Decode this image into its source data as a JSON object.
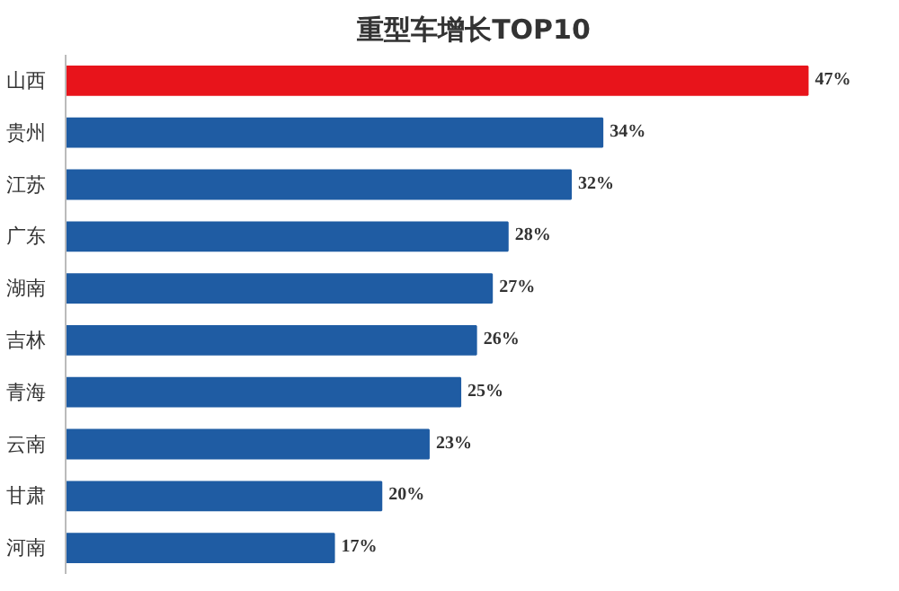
{
  "chart_data": {
    "type": "bar",
    "orientation": "horizontal",
    "title": "重型车增长TOP10",
    "categories": [
      "山西",
      "贵州",
      "江苏",
      "广东",
      "湖南",
      "吉林",
      "青海",
      "云南",
      "甘肃",
      "河南"
    ],
    "values": [
      47,
      34,
      32,
      28,
      27,
      26,
      25,
      23,
      20,
      17
    ],
    "value_labels": [
      "47%",
      "34%",
      "32%",
      "28%",
      "27%",
      "26%",
      "25%",
      "23%",
      "20%",
      "17%"
    ],
    "colors": [
      "#e8141b",
      "#1f5ca3",
      "#1f5ca3",
      "#1f5ca3",
      "#1f5ca3",
      "#1f5ca3",
      "#1f5ca3",
      "#1f5ca3",
      "#1f5ca3",
      "#1f5ca3"
    ],
    "grid": false
  }
}
